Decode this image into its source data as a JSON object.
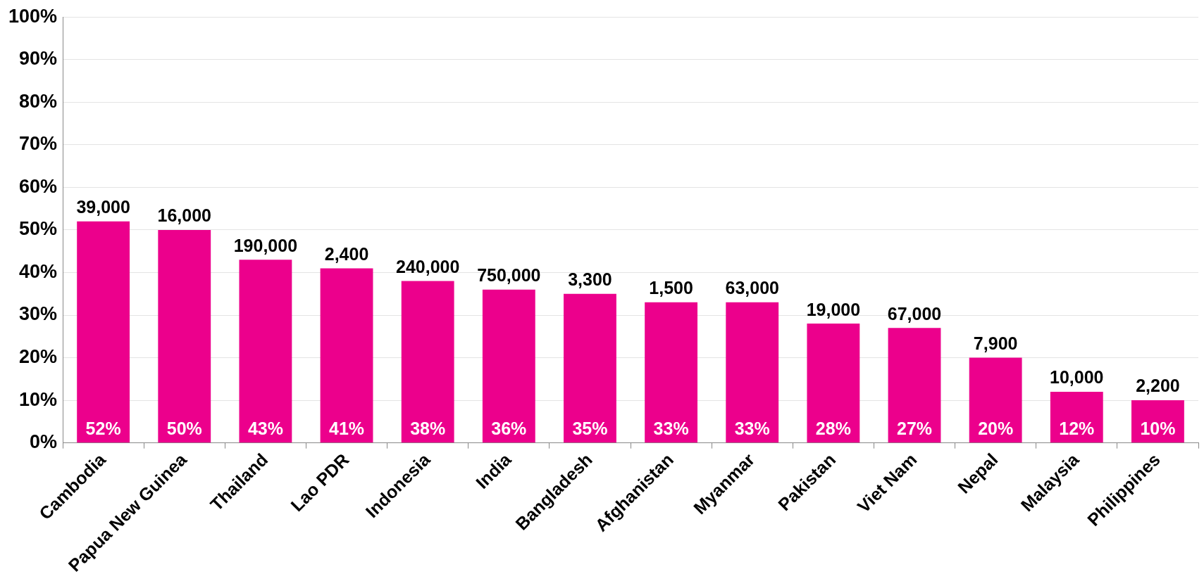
{
  "chart_data": {
    "type": "bar",
    "categories": [
      "Cambodia",
      "Papua New Guinea",
      "Thailand",
      "Lao PDR",
      "Indonesia",
      "India",
      "Bangladesh",
      "Afghanistan",
      "Myanmar",
      "Pakistan",
      "Viet Nam",
      "Nepal",
      "Malaysia",
      "Philippines"
    ],
    "values": [
      52,
      50,
      43,
      41,
      38,
      36,
      35,
      33,
      33,
      28,
      27,
      20,
      12,
      10
    ],
    "value_labels": [
      "52%",
      "50%",
      "43%",
      "41%",
      "38%",
      "36%",
      "35%",
      "33%",
      "33%",
      "28%",
      "27%",
      "20%",
      "12%",
      "10%"
    ],
    "color": "#ec008c",
    "ylim": [
      0,
      100
    ],
    "yticks": [
      {
        "value": 0,
        "label": "0%"
      },
      {
        "value": 10,
        "label": "10%"
      },
      {
        "value": 20,
        "label": "20%"
      },
      {
        "value": 30,
        "label": "30%"
      },
      {
        "value": 40,
        "label": "40%"
      },
      {
        "value": 50,
        "label": "50%"
      },
      {
        "value": 60,
        "label": "60%"
      },
      {
        "value": 70,
        "label": "70%"
      },
      {
        "value": 80,
        "label": "80%"
      },
      {
        "value": 90,
        "label": "90%"
      },
      {
        "value": 100,
        "label": "100%"
      }
    ],
    "grid": "y",
    "legend": false,
    "annotations": [
      {
        "text": "39,000",
        "x": "Cambodia",
        "y": 52
      },
      {
        "text": "16,000",
        "x": "Papua New Guinea",
        "y": 50
      },
      {
        "text": "190,000",
        "x": "Thailand",
        "y": 43
      },
      {
        "text": "2,400",
        "x": "Lao PDR",
        "y": 41
      },
      {
        "text": "240,000",
        "x": "Indonesia",
        "y": 38
      },
      {
        "text": "750,000",
        "x": "India",
        "y": 36
      },
      {
        "text": "3,300",
        "x": "Bangladesh",
        "y": 35
      },
      {
        "text": "1,500",
        "x": "Afghanistan",
        "y": 33
      },
      {
        "text": "63,000",
        "x": "Myanmar",
        "y": 33
      },
      {
        "text": "19,000",
        "x": "Pakistan",
        "y": 28
      },
      {
        "text": "67,000",
        "x": "Viet Nam",
        "y": 27
      },
      {
        "text": "7,900",
        "x": "Nepal",
        "y": 20
      },
      {
        "text": "10,000",
        "x": "Malaysia",
        "y": 12
      },
      {
        "text": "2,200",
        "x": "Philippines",
        "y": 10
      }
    ]
  }
}
